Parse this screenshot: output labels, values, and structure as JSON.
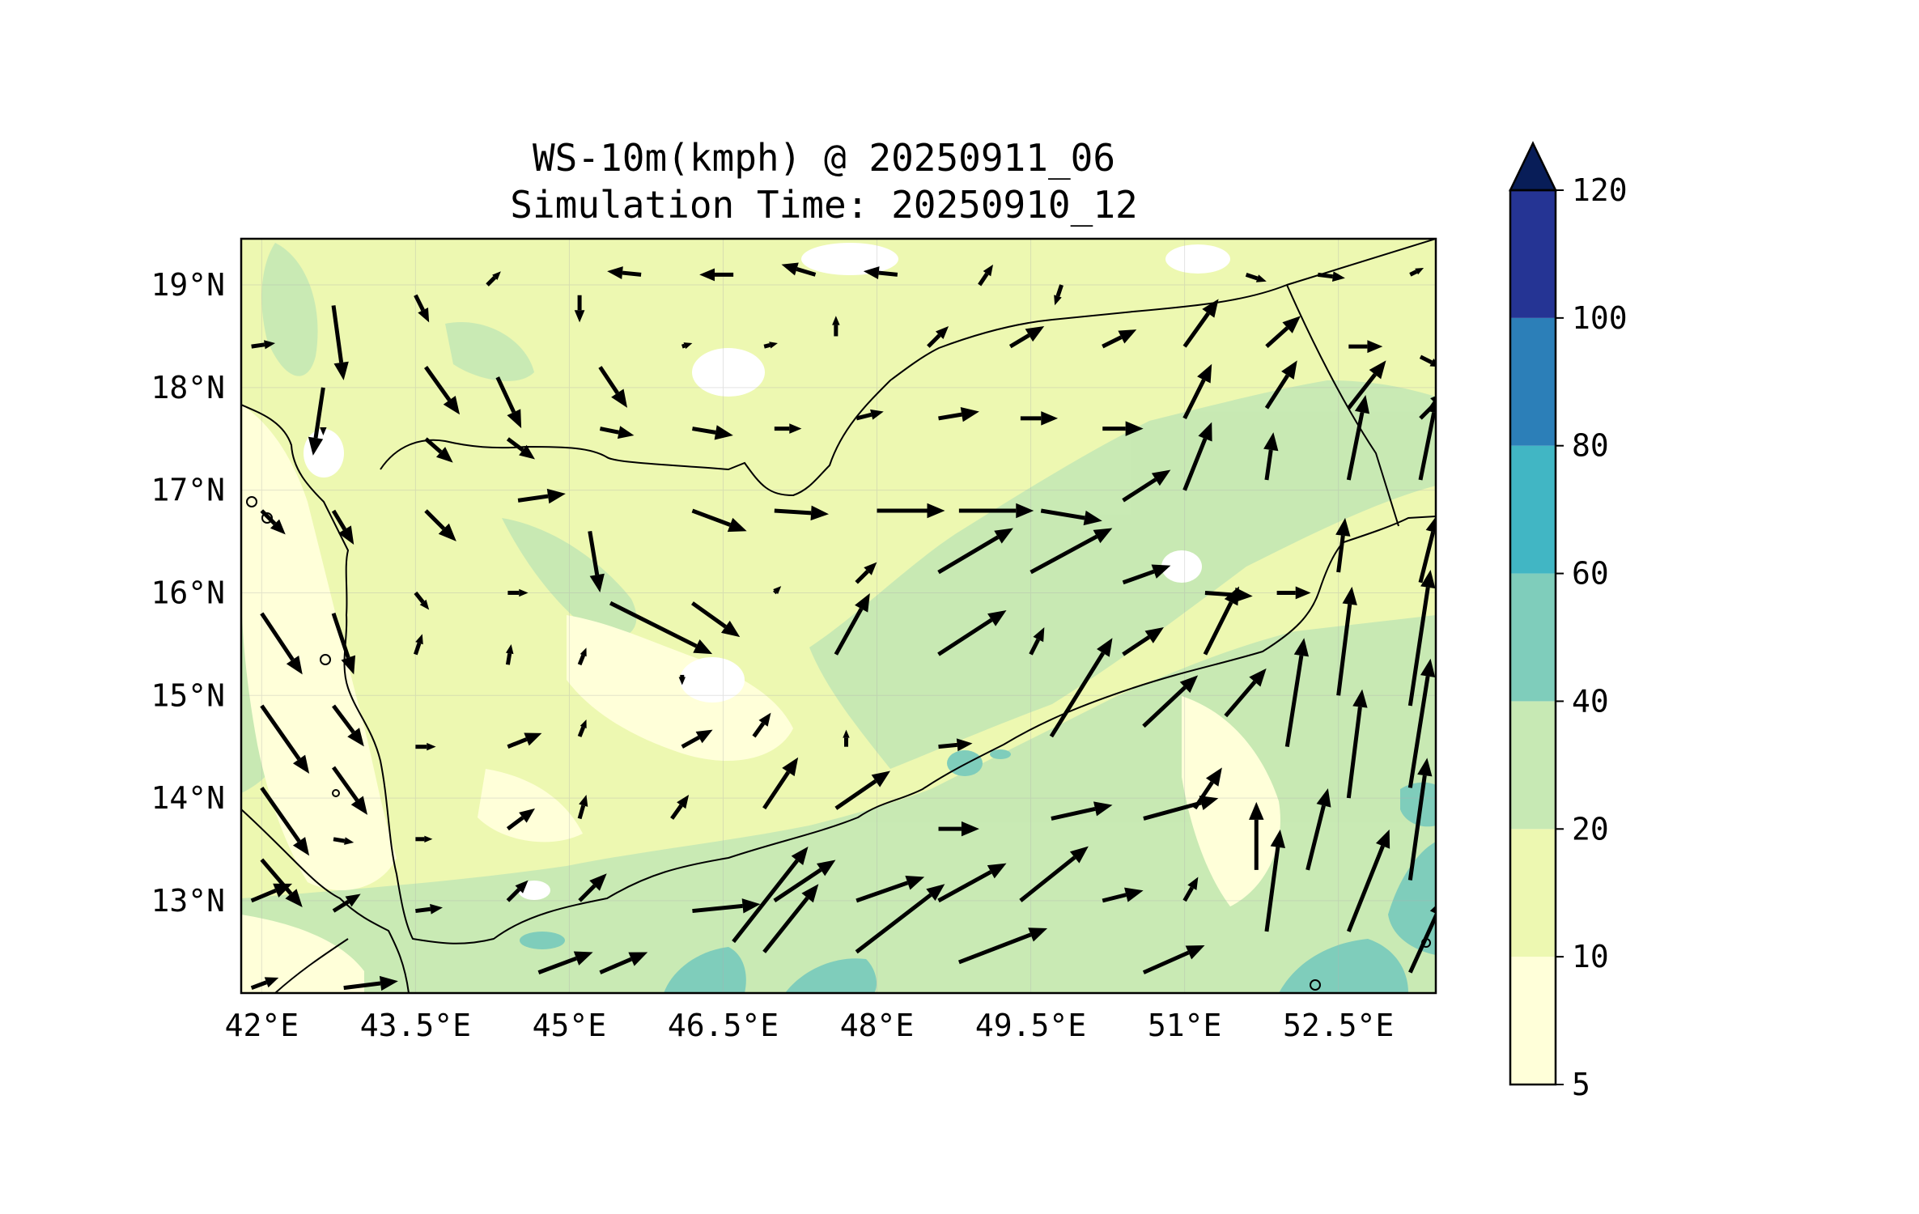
{
  "title": "WS-10m(kmph) @ 20250911_06",
  "subtitle": "Simulation Time: 20250910_12",
  "map": {
    "lon_range": [
      41.8,
      53.45
    ],
    "lat_range": [
      12.1,
      19.45
    ],
    "lon_ticks": [
      {
        "value": 42.0,
        "label": "42°E"
      },
      {
        "value": 43.5,
        "label": "43.5°E"
      },
      {
        "value": 45.0,
        "label": "45°E"
      },
      {
        "value": 46.5,
        "label": "46.5°E"
      },
      {
        "value": 48.0,
        "label": "48°E"
      },
      {
        "value": 49.5,
        "label": "49.5°E"
      },
      {
        "value": 51.0,
        "label": "51°E"
      },
      {
        "value": 52.5,
        "label": "52.5°E"
      }
    ],
    "lat_ticks": [
      {
        "value": 19,
        "label": "19°N"
      },
      {
        "value": 18,
        "label": "18°N"
      },
      {
        "value": 17,
        "label": "17°N"
      },
      {
        "value": 16,
        "label": "16°N"
      },
      {
        "value": 15,
        "label": "15°N"
      },
      {
        "value": 14,
        "label": "14°N"
      },
      {
        "value": 13,
        "label": "13°N"
      }
    ],
    "gridlines": true
  },
  "colorbar": {
    "levels": [
      5,
      10,
      20,
      40,
      60,
      80,
      100,
      120
    ],
    "labels": [
      "5",
      "10",
      "20",
      "40",
      "60",
      "80",
      "100",
      "120"
    ],
    "colors": [
      "#ffffd9",
      "#edf8b1",
      "#c7e9b4",
      "#7fcdbb",
      "#41b6c4",
      "#2c7fb8",
      "#253494"
    ],
    "extend_color": "#081d58",
    "extend": "max"
  },
  "wind_vectors_kmph": [
    {
      "lon": 42.7,
      "lat": 18.8,
      "u": 3,
      "v": -22
    },
    {
      "lon": 43.5,
      "lat": 18.9,
      "u": 4,
      "v": -8
    },
    {
      "lon": 44.2,
      "lat": 19.0,
      "u": 4,
      "v": 4
    },
    {
      "lon": 45.1,
      "lat": 18.9,
      "u": 0,
      "v": -8
    },
    {
      "lon": 45.7,
      "lat": 19.1,
      "u": -10,
      "v": 1
    },
    {
      "lon": 46.6,
      "lat": 19.1,
      "u": -10,
      "v": 0
    },
    {
      "lon": 47.4,
      "lat": 19.1,
      "u": -10,
      "v": 3
    },
    {
      "lon": 48.2,
      "lat": 19.1,
      "u": -10,
      "v": 1
    },
    {
      "lon": 49.0,
      "lat": 19.0,
      "u": 4,
      "v": 6
    },
    {
      "lon": 49.8,
      "lat": 19.0,
      "u": -2,
      "v": -6
    },
    {
      "lon": 51.6,
      "lat": 19.1,
      "u": 6,
      "v": -2
    },
    {
      "lon": 52.3,
      "lat": 19.1,
      "u": 8,
      "v": -1
    },
    {
      "lon": 53.2,
      "lat": 19.1,
      "u": 4,
      "v": 2
    },
    {
      "lon": 41.9,
      "lat": 18.4,
      "u": 7,
      "v": 1
    },
    {
      "lon": 42.6,
      "lat": 18.0,
      "u": -3,
      "v": -20
    },
    {
      "lon": 43.6,
      "lat": 18.2,
      "u": 10,
      "v": -14
    },
    {
      "lon": 44.3,
      "lat": 18.1,
      "u": 7,
      "v": -15
    },
    {
      "lon": 45.3,
      "lat": 18.2,
      "u": 8,
      "v": -12
    },
    {
      "lon": 46.1,
      "lat": 18.4,
      "u": 3,
      "v": 1
    },
    {
      "lon": 46.9,
      "lat": 18.4,
      "u": 4,
      "v": 1
    },
    {
      "lon": 47.6,
      "lat": 18.5,
      "u": 0,
      "v": 6
    },
    {
      "lon": 48.5,
      "lat": 18.4,
      "u": 6,
      "v": 6
    },
    {
      "lon": 49.3,
      "lat": 18.4,
      "u": 10,
      "v": 6
    },
    {
      "lon": 50.2,
      "lat": 18.4,
      "u": 10,
      "v": 5
    },
    {
      "lon": 51.0,
      "lat": 18.4,
      "u": 10,
      "v": 14
    },
    {
      "lon": 51.8,
      "lat": 18.4,
      "u": 10,
      "v": 9
    },
    {
      "lon": 52.6,
      "lat": 18.4,
      "u": 10,
      "v": 0
    },
    {
      "lon": 53.3,
      "lat": 18.3,
      "u": 6,
      "v": -3
    },
    {
      "lon": 42.6,
      "lat": 17.6,
      "u": 0,
      "v": -2
    },
    {
      "lon": 43.6,
      "lat": 17.5,
      "u": 8,
      "v": -7
    },
    {
      "lon": 44.4,
      "lat": 17.5,
      "u": 8,
      "v": -6
    },
    {
      "lon": 45.3,
      "lat": 17.6,
      "u": 10,
      "v": -2
    },
    {
      "lon": 46.2,
      "lat": 17.6,
      "u": 12,
      "v": -2
    },
    {
      "lon": 47.0,
      "lat": 17.6,
      "u": 8,
      "v": 0
    },
    {
      "lon": 47.8,
      "lat": 17.7,
      "u": 8,
      "v": 2
    },
    {
      "lon": 48.6,
      "lat": 17.7,
      "u": 12,
      "v": 2
    },
    {
      "lon": 49.4,
      "lat": 17.7,
      "u": 11,
      "v": 0
    },
    {
      "lon": 50.2,
      "lat": 17.6,
      "u": 12,
      "v": 0
    },
    {
      "lon": 51.0,
      "lat": 17.7,
      "u": 8,
      "v": 16
    },
    {
      "lon": 51.8,
      "lat": 17.8,
      "u": 9,
      "v": 14
    },
    {
      "lon": 52.6,
      "lat": 17.8,
      "u": 11,
      "v": 14
    },
    {
      "lon": 53.3,
      "lat": 17.7,
      "u": 8,
      "v": 8
    },
    {
      "lon": 42.0,
      "lat": 16.8,
      "u": 7,
      "v": -7
    },
    {
      "lon": 42.7,
      "lat": 16.8,
      "u": 6,
      "v": -10
    },
    {
      "lon": 43.6,
      "lat": 16.8,
      "u": 9,
      "v": -9
    },
    {
      "lon": 44.5,
      "lat": 16.9,
      "u": 14,
      "v": 2
    },
    {
      "lon": 45.2,
      "lat": 16.6,
      "u": 3,
      "v": -18
    },
    {
      "lon": 46.2,
      "lat": 16.8,
      "u": 16,
      "v": -6
    },
    {
      "lon": 47.0,
      "lat": 16.8,
      "u": 16,
      "v": -1
    },
    {
      "lon": 48.0,
      "lat": 16.8,
      "u": 20,
      "v": 0
    },
    {
      "lon": 48.8,
      "lat": 16.8,
      "u": 22,
      "v": 0
    },
    {
      "lon": 49.6,
      "lat": 16.8,
      "u": 18,
      "v": -3
    },
    {
      "lon": 50.4,
      "lat": 16.9,
      "u": 14,
      "v": 9
    },
    {
      "lon": 51.0,
      "lat": 17.0,
      "u": 8,
      "v": 20
    },
    {
      "lon": 51.8,
      "lat": 17.1,
      "u": 2,
      "v": 14
    },
    {
      "lon": 52.6,
      "lat": 17.1,
      "u": 5,
      "v": 25
    },
    {
      "lon": 53.3,
      "lat": 17.1,
      "u": 5,
      "v": 25
    },
    {
      "lon": 42.0,
      "lat": 15.8,
      "u": 12,
      "v": -18
    },
    {
      "lon": 42.7,
      "lat": 15.8,
      "u": 6,
      "v": -18
    },
    {
      "lon": 43.5,
      "lat": 16.0,
      "u": 4,
      "v": -5
    },
    {
      "lon": 44.4,
      "lat": 16.0,
      "u": 6,
      "v": 0
    },
    {
      "lon": 45.4,
      "lat": 15.9,
      "u": 30,
      "v": -15
    },
    {
      "lon": 46.2,
      "lat": 15.9,
      "u": 14,
      "v": -10
    },
    {
      "lon": 47.0,
      "lat": 16.0,
      "u": 2,
      "v": 2
    },
    {
      "lon": 47.8,
      "lat": 16.1,
      "u": 6,
      "v": 6
    },
    {
      "lon": 48.6,
      "lat": 16.2,
      "u": 22,
      "v": 13
    },
    {
      "lon": 49.5,
      "lat": 16.2,
      "u": 24,
      "v": 13
    },
    {
      "lon": 50.4,
      "lat": 16.1,
      "u": 14,
      "v": 5
    },
    {
      "lon": 51.2,
      "lat": 16.0,
      "u": 14,
      "v": -1
    },
    {
      "lon": 51.9,
      "lat": 16.0,
      "u": 10,
      "v": 0
    },
    {
      "lon": 52.5,
      "lat": 16.2,
      "u": 2,
      "v": 16
    },
    {
      "lon": 53.3,
      "lat": 16.1,
      "u": 5,
      "v": 20
    },
    {
      "lon": 42.0,
      "lat": 14.9,
      "u": 14,
      "v": -20
    },
    {
      "lon": 42.7,
      "lat": 14.9,
      "u": 9,
      "v": -12
    },
    {
      "lon": 43.5,
      "lat": 15.4,
      "u": 2,
      "v": 6
    },
    {
      "lon": 44.4,
      "lat": 15.3,
      "u": 1,
      "v": 6
    },
    {
      "lon": 45.1,
      "lat": 15.3,
      "u": 2,
      "v": 5
    },
    {
      "lon": 46.1,
      "lat": 15.2,
      "u": 0,
      "v": -3
    },
    {
      "lon": 47.6,
      "lat": 15.4,
      "u": 10,
      "v": 18
    },
    {
      "lon": 48.6,
      "lat": 15.4,
      "u": 20,
      "v": 13
    },
    {
      "lon": 49.5,
      "lat": 15.4,
      "u": 4,
      "v": 8
    },
    {
      "lon": 50.4,
      "lat": 15.4,
      "u": 12,
      "v": 8
    },
    {
      "lon": 51.2,
      "lat": 15.4,
      "u": 10,
      "v": 20
    },
    {
      "lon": 52.5,
      "lat": 15.0,
      "u": 4,
      "v": 32
    },
    {
      "lon": 53.2,
      "lat": 14.9,
      "u": 6,
      "v": 40
    },
    {
      "lon": 42.0,
      "lat": 14.1,
      "u": 14,
      "v": -20
    },
    {
      "lon": 42.7,
      "lat": 14.3,
      "u": 10,
      "v": -14
    },
    {
      "lon": 43.5,
      "lat": 14.5,
      "u": 6,
      "v": 0
    },
    {
      "lon": 44.4,
      "lat": 14.5,
      "u": 10,
      "v": 4
    },
    {
      "lon": 45.1,
      "lat": 14.6,
      "u": 2,
      "v": 5
    },
    {
      "lon": 46.1,
      "lat": 14.5,
      "u": 9,
      "v": 5
    },
    {
      "lon": 46.8,
      "lat": 14.6,
      "u": 5,
      "v": 7
    },
    {
      "lon": 47.7,
      "lat": 14.5,
      "u": 0,
      "v": 5
    },
    {
      "lon": 48.6,
      "lat": 14.5,
      "u": 10,
      "v": 1
    },
    {
      "lon": 49.7,
      "lat": 14.6,
      "u": 18,
      "v": 29
    },
    {
      "lon": 50.6,
      "lat": 14.7,
      "u": 16,
      "v": 15
    },
    {
      "lon": 51.4,
      "lat": 14.8,
      "u": 12,
      "v": 14
    },
    {
      "lon": 52.0,
      "lat": 14.5,
      "u": 5,
      "v": 32
    },
    {
      "lon": 52.6,
      "lat": 14.0,
      "u": 4,
      "v": 32
    },
    {
      "lon": 53.2,
      "lat": 14.1,
      "u": 6,
      "v": 38
    },
    {
      "lon": 42.0,
      "lat": 13.4,
      "u": 12,
      "v": -14
    },
    {
      "lon": 42.7,
      "lat": 13.6,
      "u": 6,
      "v": -1
    },
    {
      "lon": 43.5,
      "lat": 13.6,
      "u": 5,
      "v": 0
    },
    {
      "lon": 44.4,
      "lat": 13.7,
      "u": 8,
      "v": 6
    },
    {
      "lon": 45.1,
      "lat": 13.8,
      "u": 2,
      "v": 7
    },
    {
      "lon": 46.0,
      "lat": 13.8,
      "u": 5,
      "v": 7
    },
    {
      "lon": 46.9,
      "lat": 13.9,
      "u": 10,
      "v": 15
    },
    {
      "lon": 47.6,
      "lat": 13.9,
      "u": 16,
      "v": 11
    },
    {
      "lon": 48.6,
      "lat": 13.7,
      "u": 12,
      "v": 0
    },
    {
      "lon": 49.7,
      "lat": 13.8,
      "u": 18,
      "v": 4
    },
    {
      "lon": 50.6,
      "lat": 13.8,
      "u": 22,
      "v": 6
    },
    {
      "lon": 51.1,
      "lat": 13.9,
      "u": 8,
      "v": 12
    },
    {
      "lon": 51.7,
      "lat": 13.3,
      "u": 0,
      "v": 20
    },
    {
      "lon": 52.2,
      "lat": 13.3,
      "u": 6,
      "v": 24
    },
    {
      "lon": 53.2,
      "lat": 13.2,
      "u": 5,
      "v": 36
    },
    {
      "lon": 41.9,
      "lat": 13.0,
      "u": 12,
      "v": 5
    },
    {
      "lon": 42.7,
      "lat": 12.9,
      "u": 8,
      "v": 5
    },
    {
      "lon": 43.5,
      "lat": 12.9,
      "u": 8,
      "v": 1
    },
    {
      "lon": 44.4,
      "lat": 13.0,
      "u": 6,
      "v": 6
    },
    {
      "lon": 45.1,
      "lat": 13.0,
      "u": 8,
      "v": 8
    },
    {
      "lon": 46.2,
      "lat": 12.9,
      "u": 20,
      "v": 2
    },
    {
      "lon": 46.6,
      "lat": 12.6,
      "u": 22,
      "v": 28
    },
    {
      "lon": 47.0,
      "lat": 13.0,
      "u": 18,
      "v": 12
    },
    {
      "lon": 47.8,
      "lat": 13.0,
      "u": 20,
      "v": 7
    },
    {
      "lon": 48.6,
      "lat": 13.0,
      "u": 20,
      "v": 11
    },
    {
      "lon": 49.4,
      "lat": 13.0,
      "u": 20,
      "v": 16
    },
    {
      "lon": 50.2,
      "lat": 13.0,
      "u": 12,
      "v": 3
    },
    {
      "lon": 51.0,
      "lat": 13.0,
      "u": 4,
      "v": 7
    },
    {
      "lon": 51.8,
      "lat": 12.7,
      "u": 4,
      "v": 30
    },
    {
      "lon": 52.6,
      "lat": 12.7,
      "u": 12,
      "v": 30
    },
    {
      "lon": 46.9,
      "lat": 12.5,
      "u": 16,
      "v": 20
    },
    {
      "lon": 47.8,
      "lat": 12.5,
      "u": 26,
      "v": 20
    },
    {
      "lon": 48.8,
      "lat": 12.4,
      "u": 26,
      "v": 10
    },
    {
      "lon": 50.6,
      "lat": 12.3,
      "u": 18,
      "v": 8
    },
    {
      "lon": 53.2,
      "lat": 12.3,
      "u": 10,
      "v": 22
    },
    {
      "lon": 41.9,
      "lat": 12.15,
      "u": 8,
      "v": 3
    },
    {
      "lon": 42.8,
      "lat": 12.15,
      "u": 16,
      "v": 2
    },
    {
      "lon": 44.7,
      "lat": 12.3,
      "u": 16,
      "v": 6
    },
    {
      "lon": 45.3,
      "lat": 12.3,
      "u": 14,
      "v": 6
    }
  ]
}
